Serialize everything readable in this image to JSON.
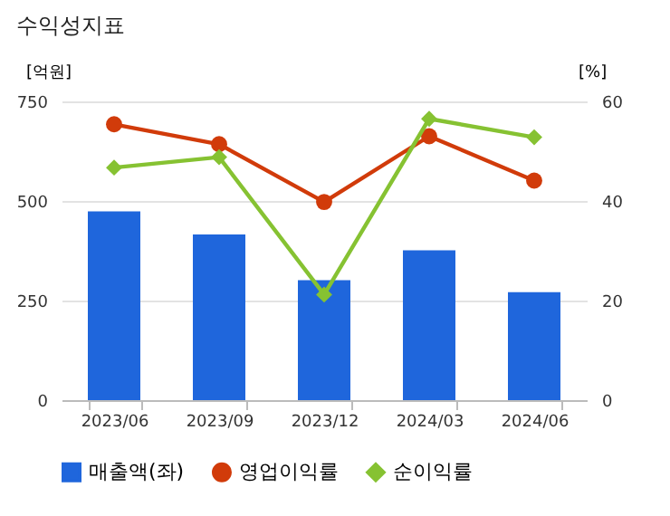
{
  "chart_data": {
    "type": "bar",
    "title": "수익성지표",
    "ylabel": "[억원]",
    "y2label": "[%]",
    "categories": [
      "2023/06",
      "2023/09",
      "2023/12",
      "2024/03",
      "2024/06"
    ],
    "series": [
      {
        "name": "매출액(좌)",
        "color": "#1f66dc",
        "values": [
          474,
          416,
          301,
          376,
          271
        ]
      },
      {
        "name": "영업이익률",
        "type": "line",
        "axis": "y2",
        "marker": "circle",
        "color": "#d13b0a",
        "values": [
          55.4,
          51.4,
          39.8,
          53.0,
          44.1
        ]
      },
      {
        "name": "순이익률",
        "type": "line",
        "axis": "y2",
        "marker": "diamond",
        "color": "#86c232",
        "values": [
          46.7,
          48.8,
          21.2,
          56.5,
          52.8
        ]
      }
    ],
    "ylim": [
      0,
      750
    ],
    "yticks": [
      0,
      250,
      500,
      750
    ],
    "y2lim": [
      0,
      60
    ],
    "y2ticks": [
      0,
      20,
      40,
      60
    ],
    "grid": "y",
    "legend": "bottom"
  }
}
